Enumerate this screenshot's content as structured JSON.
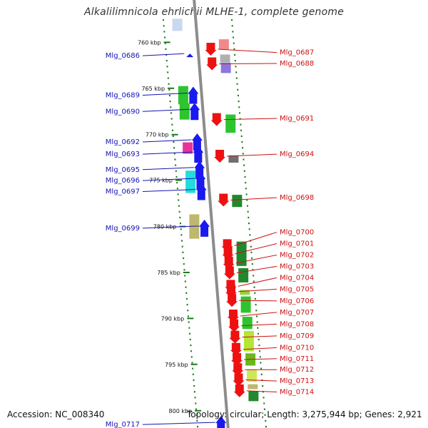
{
  "title": "Alkalilimnicola ehrlichii MLHE-1, complete genome",
  "footer": {
    "accession": "Accession: NC_008340",
    "summary": "Topology: circular; Length: 3,275,944 bp; Genes: 2,921"
  },
  "colors": {
    "backbone": "#8c8c8c",
    "tick": "#1a7a1a",
    "dots": "#1a7a1a",
    "left_label": "#1414b4",
    "right_label": "#cc1111",
    "left_leader": "#1414b4",
    "right_leader": "#cc1111"
  },
  "ticks": [
    {
      "label": "760 kbp",
      "t": 0.055
    },
    {
      "label": "765 kbp",
      "t": 0.168
    },
    {
      "label": "770 kbp",
      "t": 0.282
    },
    {
      "label": "775 kbp",
      "t": 0.394
    },
    {
      "label": "780 kbp",
      "t": 0.508
    },
    {
      "label": "785 kbp",
      "t": 0.621
    },
    {
      "label": "790 kbp",
      "t": 0.734
    },
    {
      "label": "795 kbp",
      "t": 0.847
    },
    {
      "label": "800 kbp",
      "t": 0.961
    }
  ],
  "left_genes": [
    {
      "id": "Mlg_0686",
      "t": 0.088,
      "color": "#1a1aee",
      "strand": "small",
      "lane": 1
    },
    {
      "id": "Mlg_0689",
      "t": 0.185,
      "color": "#1a1aee",
      "strand": "up",
      "lane": 1
    },
    {
      "id": "Mlg_0690",
      "t": 0.225,
      "color": "#1a1aee",
      "strand": "up",
      "lane": 1
    },
    {
      "id": "Mlg_0692",
      "t": 0.3,
      "color": "#1a1aee",
      "strand": "up",
      "lane": 1
    },
    {
      "id": "Mlg_0693",
      "t": 0.33,
      "color": "#1a1aee",
      "strand": "up",
      "lane": 1
    },
    {
      "id": "Mlg_0695",
      "t": 0.368,
      "color": "#1a1aee",
      "strand": "up",
      "lane": 1
    },
    {
      "id": "Mlg_0696",
      "t": 0.395,
      "color": "#1a1aee",
      "strand": "up",
      "lane": 1
    },
    {
      "id": "Mlg_0697",
      "t": 0.422,
      "color": "#1a1aee",
      "strand": "up",
      "lane": 1
    },
    {
      "id": "Mlg_0699",
      "t": 0.512,
      "color": "#1a1aee",
      "strand": "up",
      "lane": 1
    },
    {
      "id": "Mlg_0717",
      "t": 0.995,
      "color": "#1a1aee",
      "strand": "up",
      "lane": 1
    }
  ],
  "left_fill_genes": [
    {
      "t": 0.185,
      "color": "#2ec42e",
      "h": 0.045
    },
    {
      "t": 0.225,
      "color": "#2ec42e",
      "h": 0.04
    },
    {
      "t": 0.315,
      "color": "#e8349a",
      "h": 0.028
    },
    {
      "t": 0.398,
      "color": "#22dddd",
      "h": 0.055
    },
    {
      "t": 0.508,
      "color": "#bdb86e",
      "h": 0.06
    },
    {
      "t": 0.012,
      "color": "#c8d8f0",
      "h": 0.03
    }
  ],
  "right_genes": [
    {
      "id": "Mlg_0687",
      "t": 0.072,
      "color": "#ee1111",
      "label_y": 0.08
    },
    {
      "id": "Mlg_0688",
      "t": 0.108,
      "color": "#ee1111",
      "label_y": 0.107
    },
    {
      "id": "Mlg_0691",
      "t": 0.245,
      "color": "#ee1111",
      "label_y": 0.242
    },
    {
      "id": "Mlg_0694",
      "t": 0.335,
      "color": "#ee1111",
      "label_y": 0.33
    },
    {
      "id": "Mlg_0698",
      "t": 0.443,
      "color": "#ee1111",
      "label_y": 0.437
    },
    {
      "id": "Mlg_0700",
      "t": 0.555,
      "color": "#ee1111",
      "label_y": 0.522
    },
    {
      "id": "Mlg_0701",
      "t": 0.575,
      "color": "#ee1111",
      "label_y": 0.55
    },
    {
      "id": "Mlg_0702",
      "t": 0.598,
      "color": "#ee1111",
      "label_y": 0.578
    },
    {
      "id": "Mlg_0703",
      "t": 0.622,
      "color": "#ee1111",
      "label_y": 0.606
    },
    {
      "id": "Mlg_0704",
      "t": 0.655,
      "color": "#ee1111",
      "label_y": 0.634
    },
    {
      "id": "Mlg_0705",
      "t": 0.668,
      "color": "#ee1111",
      "label_y": 0.662
    },
    {
      "id": "Mlg_0706",
      "t": 0.69,
      "color": "#ee1111",
      "label_y": 0.691
    },
    {
      "id": "Mlg_0707",
      "t": 0.728,
      "color": "#ee1111",
      "label_y": 0.719
    },
    {
      "id": "Mlg_0708",
      "t": 0.752,
      "color": "#ee1111",
      "label_y": 0.748
    },
    {
      "id": "Mlg_0709",
      "t": 0.78,
      "color": "#ee1111",
      "label_y": 0.777
    },
    {
      "id": "Mlg_0710",
      "t": 0.81,
      "color": "#ee1111",
      "label_y": 0.806
    },
    {
      "id": "Mlg_0711",
      "t": 0.835,
      "color": "#ee1111",
      "label_y": 0.833
    },
    {
      "id": "Mlg_0712",
      "t": 0.86,
      "color": "#ee1111",
      "label_y": 0.86
    },
    {
      "id": "Mlg_0713",
      "t": 0.885,
      "color": "#ee1111",
      "label_y": 0.888
    },
    {
      "id": "Mlg_0714",
      "t": 0.912,
      "color": "#ee1111",
      "label_y": 0.915
    }
  ],
  "right_fill_genes": [
    {
      "t": 0.06,
      "color": "#f08a8a",
      "h": 0.025
    },
    {
      "t": 0.095,
      "color": "#b0b0b0",
      "h": 0.02
    },
    {
      "t": 0.118,
      "color": "#8a78e0",
      "h": 0.025
    },
    {
      "t": 0.255,
      "color": "#2ec42e",
      "h": 0.045
    },
    {
      "t": 0.342,
      "color": "#707070",
      "h": 0.018
    },
    {
      "t": 0.445,
      "color": "#22882e",
      "h": 0.03
    },
    {
      "t": 0.575,
      "color": "#22882e",
      "h": 0.06
    },
    {
      "t": 0.628,
      "color": "#22882e",
      "h": 0.035
    },
    {
      "t": 0.67,
      "color": "#9ad040",
      "h": 0.012
    },
    {
      "t": 0.7,
      "color": "#2ec42e",
      "h": 0.04
    },
    {
      "t": 0.745,
      "color": "#2ec42e",
      "h": 0.03
    },
    {
      "t": 0.79,
      "color": "#b6e634",
      "h": 0.05
    },
    {
      "t": 0.835,
      "color": "#6ab81a",
      "h": 0.03
    },
    {
      "t": 0.875,
      "color": "#cfe65a",
      "h": 0.03
    },
    {
      "t": 0.902,
      "color": "#bdb86e",
      "h": 0.012
    },
    {
      "t": 0.925,
      "color": "#22882e",
      "h": 0.025
    }
  ]
}
